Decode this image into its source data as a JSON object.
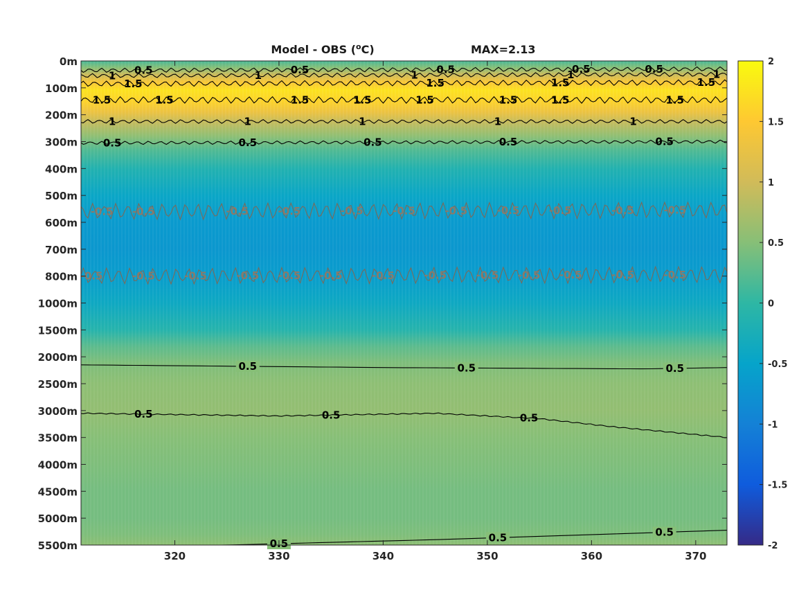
{
  "chart_data": {
    "type": "heatmap",
    "title": "Model - OBS (",
    "title_superscript": "o",
    "title_unit_suffix": "C)",
    "title_max": "MAX=2.13",
    "xlim": [
      311,
      373
    ],
    "x_ticks": [
      {
        "value": 320,
        "label": "320"
      },
      {
        "value": 330,
        "label": "330"
      },
      {
        "value": 340,
        "label": "340"
      },
      {
        "value": 350,
        "label": "350"
      },
      {
        "value": 360,
        "label": "360"
      },
      {
        "value": 370,
        "label": "370"
      }
    ],
    "y_direction": "top-down",
    "y_ticks": [
      {
        "index": 0,
        "label": "0m"
      },
      {
        "index": 1,
        "label": "100m"
      },
      {
        "index": 2,
        "label": "200m"
      },
      {
        "index": 3,
        "label": "300m"
      },
      {
        "index": 4,
        "label": "400m"
      },
      {
        "index": 5,
        "label": "500m"
      },
      {
        "index": 6,
        "label": "600m"
      },
      {
        "index": 7,
        "label": "700m"
      },
      {
        "index": 8,
        "label": "800m"
      },
      {
        "index": 9,
        "label": "1000m"
      },
      {
        "index": 10,
        "label": "1500m"
      },
      {
        "index": 11,
        "label": "2000m"
      },
      {
        "index": 12,
        "label": "2500m"
      },
      {
        "index": 13,
        "label": "3000m"
      },
      {
        "index": 14,
        "label": "3500m"
      },
      {
        "index": 15,
        "label": "4000m"
      },
      {
        "index": 16,
        "label": "4500m"
      },
      {
        "index": 17,
        "label": "5000m"
      },
      {
        "index": 18,
        "label": "5500m"
      }
    ],
    "depth_profile": [
      {
        "index": 0,
        "value": 0.15
      },
      {
        "index": 0.25,
        "value": 0.5
      },
      {
        "index": 0.5,
        "value": 0.95
      },
      {
        "index": 0.8,
        "value": 1.45
      },
      {
        "index": 1.1,
        "value": 1.75
      },
      {
        "index": 1.5,
        "value": 1.6
      },
      {
        "index": 1.9,
        "value": 1.3
      },
      {
        "index": 2.3,
        "value": 0.9
      },
      {
        "index": 2.8,
        "value": 0.55
      },
      {
        "index": 3.3,
        "value": 0.2
      },
      {
        "index": 4.0,
        "value": -0.15
      },
      {
        "index": 5.0,
        "value": -0.45
      },
      {
        "index": 6.0,
        "value": -0.65
      },
      {
        "index": 7.0,
        "value": -0.68
      },
      {
        "index": 8.0,
        "value": -0.6
      },
      {
        "index": 9.0,
        "value": -0.4
      },
      {
        "index": 10.0,
        "value": -0.1
      },
      {
        "index": 10.6,
        "value": 0.25
      },
      {
        "index": 11.2,
        "value": 0.45
      },
      {
        "index": 12.0,
        "value": 0.55
      },
      {
        "index": 13.0,
        "value": 0.58
      },
      {
        "index": 14.0,
        "value": 0.5
      },
      {
        "index": 15.0,
        "value": 0.45
      },
      {
        "index": 16.0,
        "value": 0.4
      },
      {
        "index": 17.0,
        "value": 0.4
      },
      {
        "index": 17.6,
        "value": 0.45
      },
      {
        "index": 18.0,
        "value": 0.55
      }
    ],
    "contours": [
      {
        "level": 0.5,
        "color": "#000000",
        "wiggle": 0.08,
        "points": [
          [
            311,
            0.35
          ],
          [
            373,
            0.3
          ]
        ],
        "labels": [
          {
            "x": 317,
            "text": "0.5"
          },
          {
            "x": 332,
            "text": "0.5"
          },
          {
            "x": 346,
            "text": "0.5"
          },
          {
            "x": 359,
            "text": "0.5"
          },
          {
            "x": 366,
            "text": "0.5"
          }
        ]
      },
      {
        "level": 1,
        "color": "#000000",
        "wiggle": 0.08,
        "points": [
          [
            311,
            0.55
          ],
          [
            373,
            0.5
          ]
        ],
        "labels": [
          {
            "x": 314,
            "text": "1"
          },
          {
            "x": 328,
            "text": "1"
          },
          {
            "x": 343,
            "text": "1"
          },
          {
            "x": 358,
            "text": "1"
          },
          {
            "x": 372,
            "text": "1"
          }
        ]
      },
      {
        "level": 1.5,
        "color": "#000000",
        "wiggle": 0.1,
        "points": [
          [
            311,
            0.85
          ],
          [
            373,
            0.8
          ]
        ],
        "labels": [
          {
            "x": 316,
            "text": "1.5"
          },
          {
            "x": 345,
            "text": "1.5"
          },
          {
            "x": 357,
            "text": "1.5"
          },
          {
            "x": 371,
            "text": "1.5"
          }
        ]
      },
      {
        "level": 1.5,
        "color": "#000000",
        "wiggle": 0.12,
        "points": [
          [
            311,
            1.45
          ],
          [
            373,
            1.45
          ]
        ],
        "labels": [
          {
            "x": 313,
            "text": "1.5"
          },
          {
            "x": 319,
            "text": "1.5"
          },
          {
            "x": 332,
            "text": "1.5"
          },
          {
            "x": 338,
            "text": "1.5"
          },
          {
            "x": 344,
            "text": "1.5"
          },
          {
            "x": 352,
            "text": "1.5"
          },
          {
            "x": 357,
            "text": "1.5"
          },
          {
            "x": 368,
            "text": "1.5"
          }
        ]
      },
      {
        "level": 1,
        "color": "#000000",
        "wiggle": 0.07,
        "points": [
          [
            311,
            2.25
          ],
          [
            373,
            2.25
          ]
        ],
        "labels": [
          {
            "x": 314,
            "text": "1"
          },
          {
            "x": 327,
            "text": "1"
          },
          {
            "x": 338,
            "text": "1"
          },
          {
            "x": 351,
            "text": "1"
          },
          {
            "x": 364,
            "text": "1"
          }
        ]
      },
      {
        "level": 0.5,
        "color": "#000000",
        "wiggle": 0.06,
        "points": [
          [
            311,
            3.05
          ],
          [
            373,
            3.0
          ]
        ],
        "labels": [
          {
            "x": 314,
            "text": "0.5"
          },
          {
            "x": 327,
            "text": "0.5"
          },
          {
            "x": 339,
            "text": "0.5"
          },
          {
            "x": 352,
            "text": "0.5"
          },
          {
            "x": 367,
            "text": "0.5"
          }
        ]
      },
      {
        "level": -0.5,
        "color": "#7a6a5a",
        "wiggle": 0.3,
        "points": [
          [
            311,
            5.6
          ],
          [
            373,
            5.55
          ]
        ],
        "labels": [
          {
            "x": 313,
            "text": "-0.5"
          },
          {
            "x": 317,
            "text": "-0.5"
          },
          {
            "x": 326,
            "text": "-0.5"
          },
          {
            "x": 331,
            "text": "-0.5"
          },
          {
            "x": 337,
            "text": "-0.5"
          },
          {
            "x": 342,
            "text": "-0.5"
          },
          {
            "x": 347,
            "text": "-0.5"
          },
          {
            "x": 352,
            "text": "-0.5"
          },
          {
            "x": 357,
            "text": "-0.5"
          },
          {
            "x": 363,
            "text": "-0.5"
          },
          {
            "x": 368,
            "text": "-0.5"
          }
        ]
      },
      {
        "level": -0.5,
        "color": "#7a6a5a",
        "wiggle": 0.3,
        "points": [
          [
            311,
            8.0
          ],
          [
            373,
            7.95
          ]
        ],
        "labels": [
          {
            "x": 312,
            "text": "-0.5"
          },
          {
            "x": 317,
            "text": "-0.5"
          },
          {
            "x": 322,
            "text": "-0.5"
          },
          {
            "x": 327,
            "text": "-0.5"
          },
          {
            "x": 331,
            "text": "-0.5"
          },
          {
            "x": 335,
            "text": "-0.5"
          },
          {
            "x": 340,
            "text": "-0.5"
          },
          {
            "x": 345,
            "text": "-0.5"
          },
          {
            "x": 350,
            "text": "-0.5"
          },
          {
            "x": 354,
            "text": "-0.5"
          },
          {
            "x": 358,
            "text": "-0.5"
          },
          {
            "x": 363,
            "text": "-0.5"
          },
          {
            "x": 368,
            "text": "-0.5"
          }
        ]
      },
      {
        "level": 0.5,
        "color": "#000000",
        "wiggle": 0.0,
        "points": [
          [
            311,
            11.3
          ],
          [
            340,
            11.4
          ],
          [
            365,
            11.45
          ],
          [
            373,
            11.4
          ]
        ],
        "labels": [
          {
            "x": 327,
            "text": "0.5"
          },
          {
            "x": 348,
            "text": "0.5"
          },
          {
            "x": 368,
            "text": "0.5"
          }
        ]
      },
      {
        "level": 0.5,
        "color": "#000000",
        "wiggle": 0.02,
        "points": [
          [
            311,
            13.1
          ],
          [
            330,
            13.2
          ],
          [
            345,
            13.1
          ],
          [
            355,
            13.3
          ],
          [
            362,
            13.6
          ],
          [
            373,
            14.0
          ]
        ],
        "labels": [
          {
            "x": 317,
            "text": "0.5"
          },
          {
            "x": 335,
            "text": "0.5"
          },
          {
            "x": 354,
            "text": "0.5"
          }
        ]
      },
      {
        "level": 0.5,
        "color": "#000000",
        "wiggle": 0.0,
        "points": [
          [
            325,
            18.0
          ],
          [
            345,
            17.8
          ],
          [
            373,
            17.45
          ]
        ],
        "labels": [
          {
            "x": 330,
            "text": "0.5"
          },
          {
            "x": 351,
            "text": "0.5"
          },
          {
            "x": 367,
            "text": "0.5"
          }
        ]
      }
    ],
    "colorbar": {
      "min": -2,
      "max": 2,
      "ticks": [
        {
          "value": 2,
          "label": "2"
        },
        {
          "value": 1.5,
          "label": "1.5"
        },
        {
          "value": 1,
          "label": "1"
        },
        {
          "value": 0.5,
          "label": "0.5"
        },
        {
          "value": 0,
          "label": "0"
        },
        {
          "value": -0.5,
          "label": "-0.5"
        },
        {
          "value": -1,
          "label": "-1"
        },
        {
          "value": -1.5,
          "label": "-1.5"
        },
        {
          "value": -2,
          "label": "-2"
        }
      ],
      "colormap": "parula",
      "colormap_colors": [
        "#352a87",
        "#0f5cdd",
        "#1481d6",
        "#06a4ca",
        "#2eb7a4",
        "#87bf77",
        "#d1bb59",
        "#fec832",
        "#f9fb0e"
      ]
    }
  }
}
